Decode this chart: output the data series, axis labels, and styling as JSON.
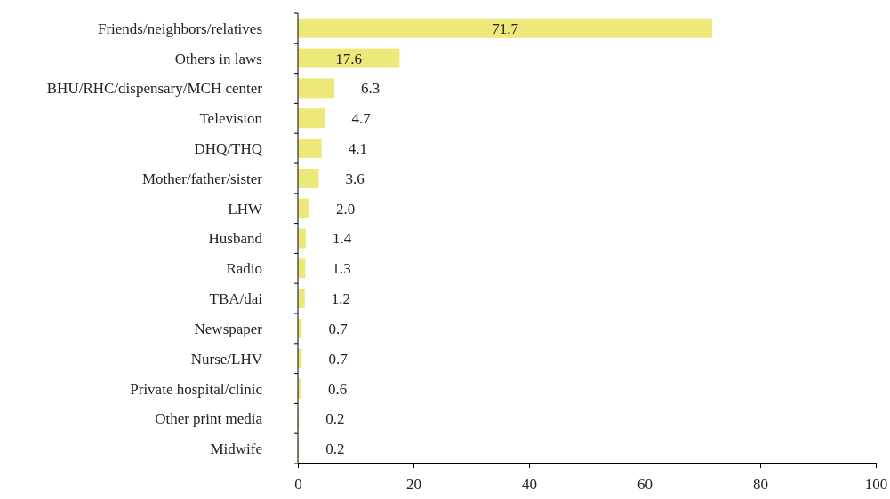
{
  "chart_data": {
    "type": "bar",
    "orientation": "horizontal",
    "categories": [
      "Friends/neighbors/relatives",
      "Others in laws",
      "BHU/RHC/dispensary/MCH center",
      "Television",
      "DHQ/THQ",
      "Mother/father/sister",
      "LHW",
      "Husband",
      "Radio",
      "TBA/dai",
      "Newspaper",
      "Nurse/LHV",
      "Private hospital/clinic",
      "Other print media",
      "Midwife"
    ],
    "values": [
      71.7,
      17.6,
      6.3,
      4.7,
      4.1,
      3.6,
      2.0,
      1.4,
      1.3,
      1.2,
      0.7,
      0.7,
      0.6,
      0.2,
      0.2
    ],
    "value_labels": [
      "71.7",
      "17.6",
      "6.3",
      "4.7",
      "4.1",
      "3.6",
      "2.0",
      "1.4",
      "1.3",
      "1.2",
      "0.7",
      "0.7",
      "0.6",
      "0.2",
      "0.2"
    ],
    "color": "#ece87a",
    "xlim": [
      0,
      100
    ],
    "xticks": [
      0,
      20,
      40,
      60,
      80,
      100
    ],
    "grid": false
  }
}
